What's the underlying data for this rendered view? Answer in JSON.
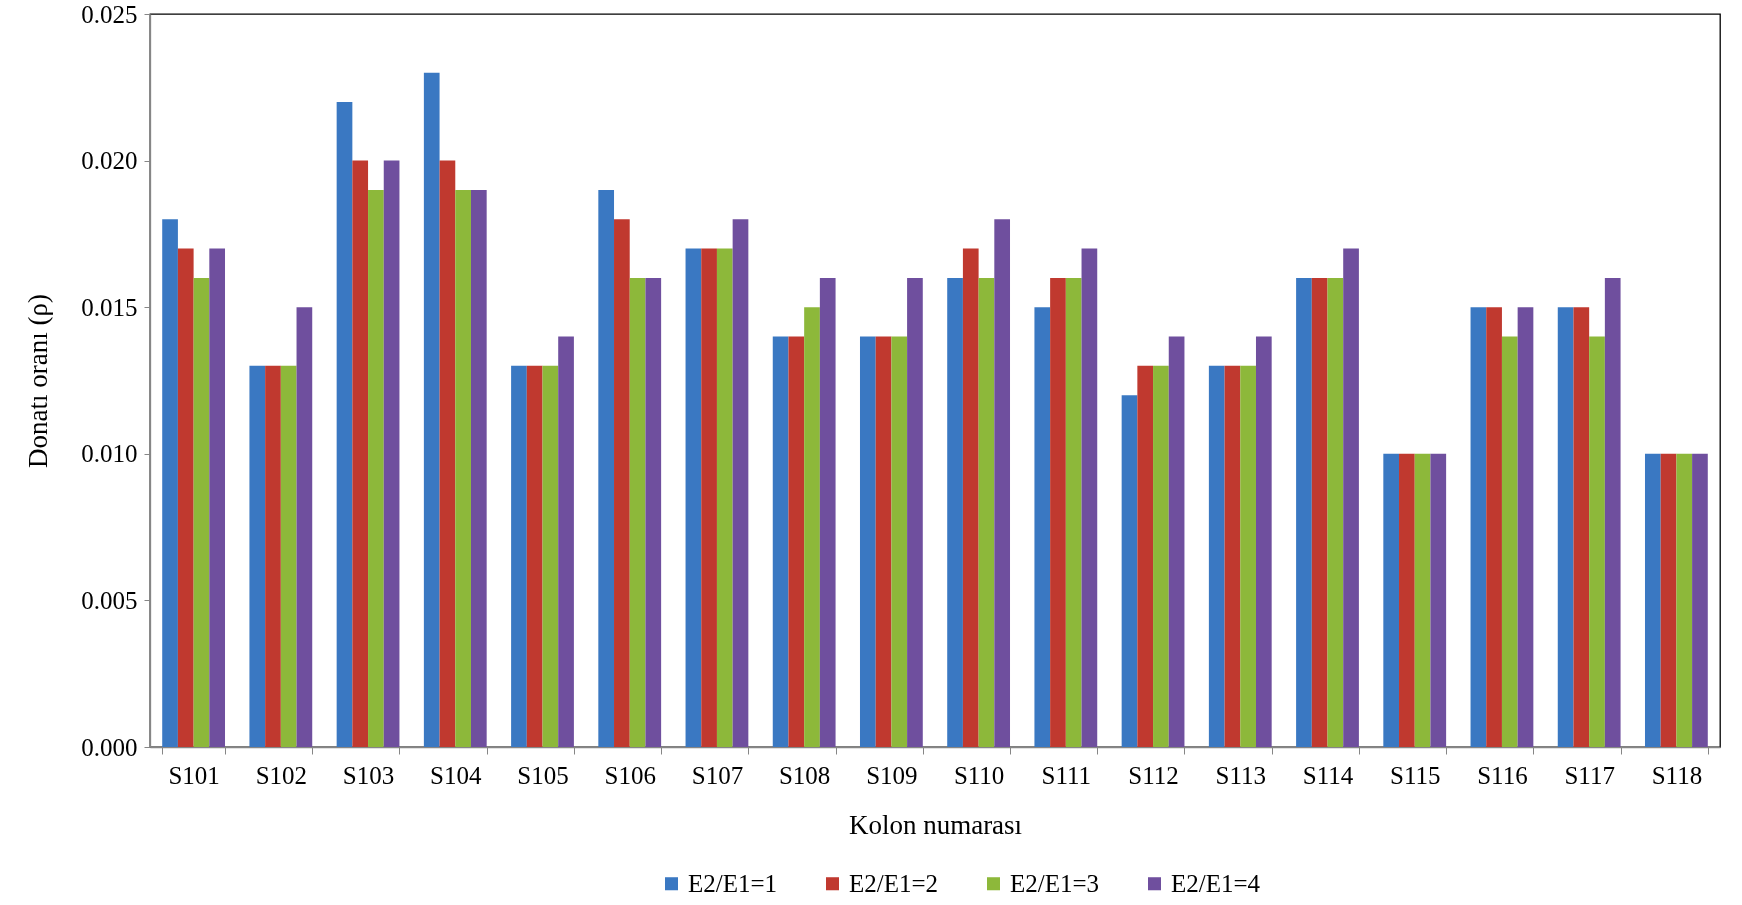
{
  "chart_data": {
    "type": "bar",
    "xlabel": "Kolon numarası",
    "ylabel": "Donatı oranı (ρ)",
    "categories": [
      "S101",
      "S102",
      "S103",
      "S104",
      "S105",
      "S106",
      "S107",
      "S108",
      "S109",
      "S110",
      "S111",
      "S112",
      "S113",
      "S114",
      "S115",
      "S116",
      "S117",
      "S118"
    ],
    "series": [
      {
        "name": "E2/E1=1",
        "color": "#3a78c2",
        "values": [
          0.018,
          0.013,
          0.022,
          0.023,
          0.013,
          0.019,
          0.017,
          0.014,
          0.014,
          0.016,
          0.015,
          0.012,
          0.013,
          0.016,
          0.01,
          0.015,
          0.015,
          0.01
        ]
      },
      {
        "name": "E2/E1=2",
        "color": "#c0392f",
        "values": [
          0.017,
          0.013,
          0.02,
          0.02,
          0.013,
          0.018,
          0.017,
          0.014,
          0.014,
          0.017,
          0.016,
          0.013,
          0.013,
          0.016,
          0.01,
          0.015,
          0.015,
          0.01
        ]
      },
      {
        "name": "E2/E1=3",
        "color": "#8db83a",
        "values": [
          0.016,
          0.013,
          0.019,
          0.019,
          0.013,
          0.016,
          0.017,
          0.015,
          0.014,
          0.016,
          0.016,
          0.013,
          0.013,
          0.016,
          0.01,
          0.014,
          0.014,
          0.01
        ]
      },
      {
        "name": "E2/E1=4",
        "color": "#6f4f9e",
        "values": [
          0.017,
          0.015,
          0.02,
          0.019,
          0.014,
          0.016,
          0.018,
          0.016,
          0.016,
          0.018,
          0.017,
          0.014,
          0.014,
          0.017,
          0.01,
          0.015,
          0.016,
          0.01
        ]
      }
    ],
    "ylim": [
      0,
      0.025
    ],
    "yticks": [
      {
        "value": 0,
        "label": "0.000"
      },
      {
        "value": 0.005,
        "label": "0.005"
      },
      {
        "value": 0.01,
        "label": "0.010"
      },
      {
        "value": 0.015,
        "label": "0.015"
      },
      {
        "value": 0.02,
        "label": "0.020"
      },
      {
        "value": 0.025,
        "label": "0.025"
      }
    ],
    "grid": false,
    "legend": "bottom"
  }
}
